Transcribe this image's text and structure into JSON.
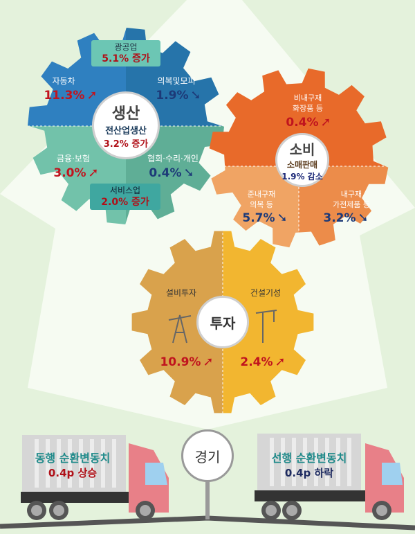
{
  "production": {
    "title": "생산",
    "subtitle": "전산업생산",
    "total": "3.2% 증가",
    "mining": {
      "label": "광공업",
      "value": "5.1% 증가"
    },
    "services": {
      "label": "서비스업",
      "value": "2.0% 증가"
    },
    "items": [
      {
        "label": "자동차",
        "value": "11.3%",
        "direction": "up"
      },
      {
        "label": "의복및모피",
        "value": "1.9%",
        "direction": "down"
      },
      {
        "label": "금융·보험",
        "value": "3.0%",
        "direction": "up"
      },
      {
        "label": "협회·수리·개인",
        "value": "0.4%",
        "direction": "down"
      }
    ],
    "colors": [
      "#2f80c0",
      "#2674aa",
      "#72c2aa",
      "#5fae96"
    ]
  },
  "consumption": {
    "title": "소비",
    "subtitle": "소매판매",
    "total": "1.9% 감소",
    "items": [
      {
        "label": "비내구재",
        "sub": "화장품 등",
        "value": "0.4%",
        "direction": "up"
      },
      {
        "label": "준내구재",
        "sub": "의복 등",
        "value": "5.7%",
        "direction": "down"
      },
      {
        "label": "내구재",
        "sub": "가전제품 등",
        "value": "3.2%",
        "direction": "down"
      }
    ],
    "colors": [
      "#e86a2a",
      "#f0a464",
      "#ec8c4a"
    ]
  },
  "investment": {
    "title": "투자",
    "items": [
      {
        "label": "설비투자",
        "value": "10.9%",
        "direction": "up",
        "icon": "oil-pump-icon"
      },
      {
        "label": "건설기성",
        "value": "2.4%",
        "direction": "up",
        "icon": "crane-icon"
      }
    ],
    "colors": [
      "#d9a24c",
      "#f2b630"
    ]
  },
  "economy": {
    "title": "경기",
    "coincident": {
      "label": "동행 순환변동치",
      "value": "0.4p 상승"
    },
    "leading": {
      "label": "선행 순환변동치",
      "value": "0.4p 하락"
    }
  },
  "arrows": {
    "up": "➚",
    "down": "➘"
  }
}
